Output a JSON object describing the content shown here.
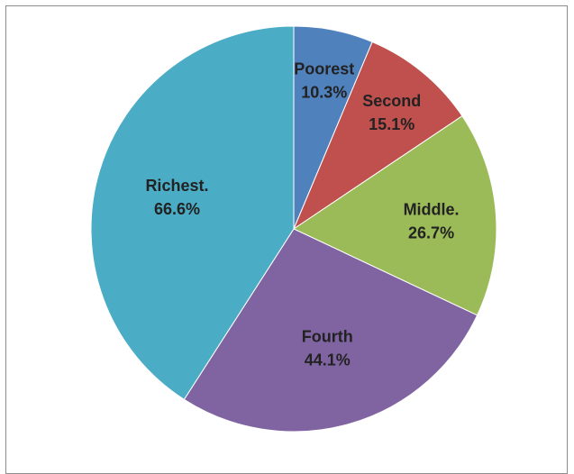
{
  "chart_data": {
    "type": "pie",
    "title": "",
    "categories": [
      "Poorest",
      "Second",
      "Middle.",
      "Fourth",
      "Richest."
    ],
    "values": [
      10.3,
      15.1,
      26.7,
      44.1,
      66.6
    ],
    "value_labels": [
      "10.3%",
      "15.1%",
      "26.7%",
      "44.1%",
      "66.6%"
    ],
    "colors": [
      "#4F81BD",
      "#C0504D",
      "#9BBB59",
      "#8064A2",
      "#4BACC6"
    ],
    "start_angle_deg": 0,
    "direction": "clockwise",
    "legend": "none",
    "data_labels": "inside"
  }
}
